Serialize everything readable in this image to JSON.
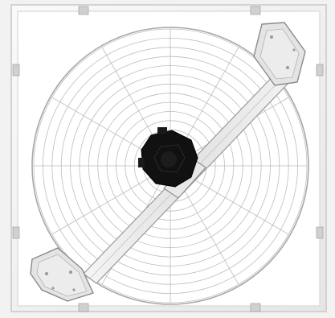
{
  "image": {
    "subject": "fan guard",
    "colors": {
      "background": "#f2f2f2",
      "frame": "#ffffff",
      "frame_edge": "#d0d0d0",
      "grill_line": "#bdbdbd",
      "arm_fill": "#ececec",
      "arm_edge": "#9a9a9a",
      "plate_fill": "#e4e4e4",
      "motor": "#111111",
      "clip": "#cfcfcf"
    },
    "icons": {
      "motor": "motor-icon",
      "mount_plate": "mount-plate-icon",
      "clip": "frame-clip-icon"
    },
    "grill": {
      "ring_count": 14,
      "spoke_count": 12
    }
  }
}
